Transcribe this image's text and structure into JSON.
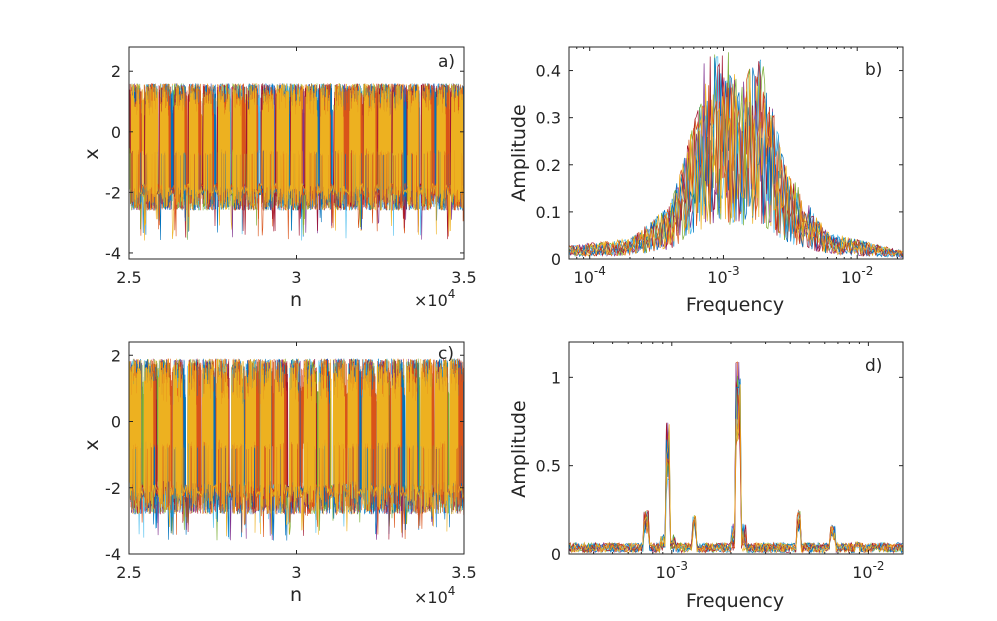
{
  "chart_data": [
    {
      "panel": "a)",
      "type": "line",
      "xlabel": "n",
      "ylabel": "x",
      "xlim": [
        25000,
        35000
      ],
      "ylim": [
        -4.2,
        2.8
      ],
      "x_ticks": [
        25000,
        30000,
        35000
      ],
      "x_tick_labels": [
        "2.5",
        "3",
        "3.5"
      ],
      "x_exponent_base": "×10",
      "x_exponent_power": "4",
      "y_ticks": [
        -4,
        -2,
        0,
        2
      ],
      "y_tick_labels": [
        "-4",
        "-2",
        "0",
        "2"
      ],
      "xscale": "linear",
      "description_series": "many overlaid trajectories oscillating in bursts between about -2.3 and 1.5",
      "series_count": 10,
      "burst_count": 23,
      "upper_band": [
        0.5,
        1.6
      ],
      "lower_band": [
        -2.6,
        -1.8
      ],
      "extreme_min": -3.6
    },
    {
      "panel": "b)",
      "type": "line",
      "xlabel": "Frequency",
      "ylabel": "Amplitude",
      "xscale": "log",
      "xlim": [
        7e-05,
        0.022
      ],
      "ylim": [
        0,
        0.45
      ],
      "x_ticks": [
        0.0001,
        0.001,
        0.01
      ],
      "x_tick_base": "10",
      "x_tick_powers": [
        "-4",
        "-3",
        "-2"
      ],
      "y_ticks": [
        0,
        0.1,
        0.2,
        0.3,
        0.4
      ],
      "y_tick_labels": [
        "0",
        "0.1",
        "0.2",
        "0.3",
        "0.4"
      ],
      "series_count": 10,
      "peak_frequency_range": [
        0.0007,
        0.0022
      ],
      "peak_amplitude_max": 0.44,
      "spectrum_profile": [
        {
          "f": 7e-05,
          "a": 0.02
        },
        {
          "f": 0.0002,
          "a": 0.03
        },
        {
          "f": 0.0004,
          "a": 0.08
        },
        {
          "f": 0.0007,
          "a": 0.25
        },
        {
          "f": 0.0009,
          "a": 0.32
        },
        {
          "f": 0.0013,
          "a": 0.26
        },
        {
          "f": 0.0019,
          "a": 0.3
        },
        {
          "f": 0.003,
          "a": 0.13
        },
        {
          "f": 0.006,
          "a": 0.04
        },
        {
          "f": 0.022,
          "a": 0.012
        }
      ]
    },
    {
      "panel": "c)",
      "type": "line",
      "xlabel": "n",
      "ylabel": "x",
      "xlim": [
        25000,
        35000
      ],
      "ylim": [
        -4,
        2.4
      ],
      "x_ticks": [
        25000,
        30000,
        35000
      ],
      "x_tick_labels": [
        "2.5",
        "3",
        "3.5"
      ],
      "x_exponent_base": "×10",
      "x_exponent_power": "4",
      "y_ticks": [
        -4,
        -2,
        0,
        2
      ],
      "y_tick_labels": [
        "-4",
        "-2",
        "0",
        "2"
      ],
      "xscale": "linear",
      "description_series": "many overlaid trajectories oscillating in regular bursts between about -2.4 and 1.8",
      "series_count": 10,
      "burst_count": 23,
      "upper_band": [
        0.5,
        1.9
      ],
      "lower_band": [
        -2.8,
        -1.8
      ],
      "extreme_min": -3.6
    },
    {
      "panel": "d)",
      "type": "line",
      "xlabel": "Frequency",
      "ylabel": "Amplitude",
      "xscale": "log",
      "xlim": [
        0.0003,
        0.015
      ],
      "ylim": [
        0,
        1.2
      ],
      "x_ticks": [
        0.001,
        0.01
      ],
      "x_tick_base": "10",
      "x_tick_powers": [
        "-3",
        "-2"
      ],
      "y_ticks": [
        0,
        0.5,
        1
      ],
      "y_tick_labels": [
        "0",
        "0.5",
        "1"
      ],
      "series_count": 10,
      "baseline_amplitude": 0.04,
      "peaks": [
        {
          "f": 0.00074,
          "a": 0.25
        },
        {
          "f": 0.00095,
          "a": 0.75
        },
        {
          "f": 0.0013,
          "a": 0.22
        },
        {
          "f": 0.00218,
          "a": 1.15
        },
        {
          "f": 0.0044,
          "a": 0.25
        },
        {
          "f": 0.0066,
          "a": 0.17
        },
        {
          "f": 0.0088,
          "a": 0.07
        },
        {
          "f": 0.011,
          "a": 0.05
        }
      ]
    }
  ],
  "colors": {
    "series": [
      "#0072BD",
      "#D95319",
      "#EDB120",
      "#7E2F8E",
      "#77AC30",
      "#4DBEEE",
      "#A2142F",
      "#0072BD",
      "#D95319",
      "#EDB120"
    ],
    "axis": "#262626"
  }
}
